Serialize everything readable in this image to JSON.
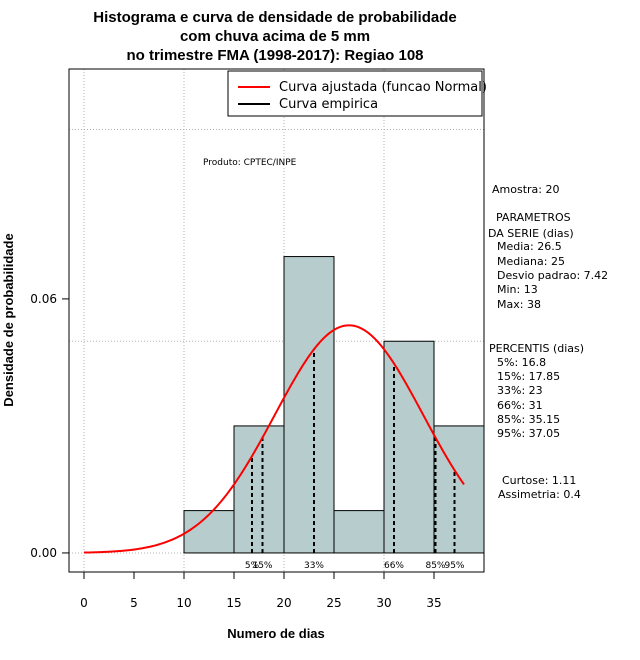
{
  "chart_data": {
    "type": "histogram",
    "title_lines": [
      "Histograma e curva de densidade de probabilidade",
      "com chuva acima de 5 mm",
      "no trimestre FMA (1998-2017): Regiao 108"
    ],
    "xlabel": "Numero de dias",
    "ylabel": "Densidade de probabilidade",
    "xlim": [
      -1.5,
      40
    ],
    "ylim": [
      -0.0045,
      0.1143
    ],
    "x_ticks": [
      0,
      5,
      10,
      15,
      20,
      25,
      30,
      35
    ],
    "y_ticks": [
      0.0,
      0.06
    ],
    "y_tick_labels": [
      "0.00",
      "0.06"
    ],
    "bins": [
      {
        "from": 10,
        "to": 15,
        "density": 0.01
      },
      {
        "from": 15,
        "to": 20,
        "density": 0.03
      },
      {
        "from": 20,
        "to": 25,
        "density": 0.07
      },
      {
        "from": 25,
        "to": 30,
        "density": 0.01
      },
      {
        "from": 30,
        "to": 35,
        "density": 0.05
      },
      {
        "from": 35,
        "to": 40,
        "density": 0.03
      }
    ],
    "bar_color": "#b7cdcd",
    "fitted_curve": {
      "type": "normal",
      "mean": 26.5,
      "sd": 7.42,
      "x_from": 0,
      "x_to": 38,
      "color": "#ff0000"
    },
    "percentile_lines": [
      {
        "label": "5%",
        "x": 16.8
      },
      {
        "label": "15%",
        "x": 17.85
      },
      {
        "label": "33%",
        "x": 23
      },
      {
        "label": "66%",
        "x": 31
      },
      {
        "label": "85%",
        "x": 35.15
      },
      {
        "label": "95%",
        "x": 37.05
      }
    ],
    "grid_x": [
      0,
      10,
      20,
      30
    ],
    "grid_y": [
      0.0,
      0.05,
      0.1
    ],
    "legend": {
      "position": "top-right",
      "entries": [
        {
          "label": "Curva ajustada (funcao Normal)",
          "color": "#ff0000"
        },
        {
          "label": "Curva empirica",
          "color": "#000000"
        }
      ]
    },
    "annotation": "Produto: CPTEC/INPE"
  },
  "side_panel": {
    "amostra": "Amostra: 20",
    "parametros_title_1": "PARAMETROS",
    "parametros_title_2": "DA SERIE (dias)",
    "parametros": [
      "Media: 26.5",
      "Mediana: 25",
      "Desvio padrao: 7.42",
      "Min: 13",
      "Max: 38"
    ],
    "percentis_title": "PERCENTIS (dias)",
    "percentis": [
      "5%: 16.8",
      "15%: 17.85",
      "33%: 23",
      "66%: 31",
      "85%: 35.15",
      "95%: 37.05"
    ],
    "curtose": "Curtose: 1.11",
    "assimetria": "Assimetria: 0.4"
  }
}
